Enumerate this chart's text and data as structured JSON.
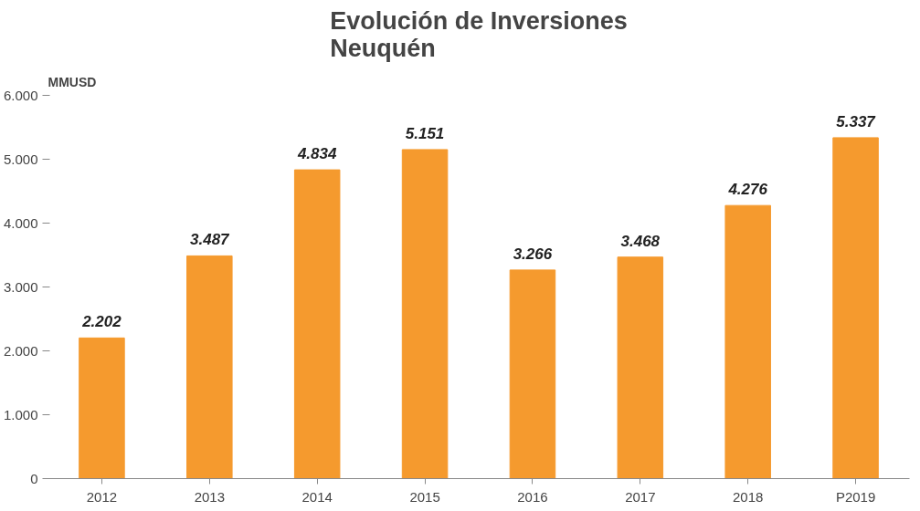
{
  "chart_data": {
    "type": "bar",
    "title": "Evolución de Inversiones\nNeuquén",
    "ylabel": "MMUSD",
    "categories": [
      "2012",
      "2013",
      "2014",
      "2015",
      "2016",
      "2017",
      "2018",
      "P2019"
    ],
    "values": [
      2202,
      3487,
      4834,
      5151,
      3266,
      3468,
      4276,
      5337
    ],
    "value_labels": [
      "2.202",
      "3.487",
      "4.834",
      "5.151",
      "3.266",
      "3.468",
      "4.276",
      "5.337"
    ],
    "color": "#f59a2e",
    "ylim": [
      0,
      6000
    ],
    "yticks": [
      {
        "value": 0,
        "label": "0"
      },
      {
        "value": 1000,
        "label": "1.000"
      },
      {
        "value": 2000,
        "label": "2.000"
      },
      {
        "value": 3000,
        "label": "3.000"
      },
      {
        "value": 4000,
        "label": "4.000"
      },
      {
        "value": 5000,
        "label": "5.000"
      },
      {
        "value": 6000,
        "label": "6.000"
      }
    ],
    "grid": false
  }
}
